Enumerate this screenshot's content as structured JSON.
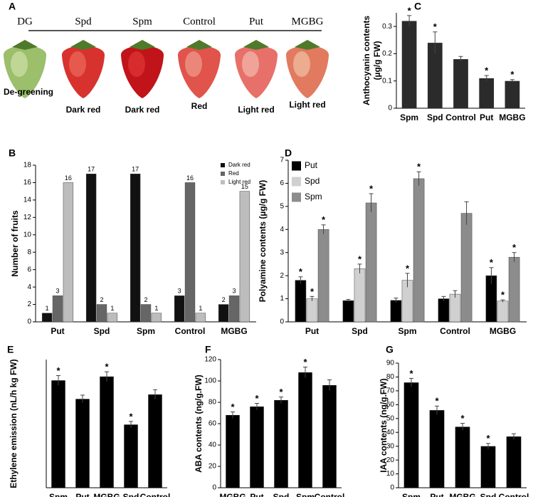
{
  "panel_a": {
    "label": "A",
    "treatments": [
      "DG",
      "Spd",
      "Spm",
      "Control",
      "Put",
      "MGBG"
    ],
    "captions": [
      "De-greening",
      "Dark red",
      "Dark red",
      "Red",
      "Light red",
      "Light red"
    ]
  },
  "chart_data": [
    {
      "type": "bar",
      "panel": "C",
      "ylabel": [
        "Anthocyanin contents",
        "(µg/g FW)"
      ],
      "categories": [
        "Spm",
        "Spd",
        "Control",
        "Put",
        "MGBG"
      ],
      "values": [
        0.32,
        0.24,
        0.18,
        0.11,
        0.1
      ],
      "errors": [
        0.02,
        0.04,
        0.01,
        0.01,
        0.005
      ],
      "markers": [
        "*",
        "*",
        null,
        "*",
        "*"
      ],
      "color": "#2b2b2b",
      "ylim": [
        0,
        0.35
      ],
      "yticks": [
        0,
        0.1,
        0.2,
        0.3
      ]
    },
    {
      "type": "bar",
      "panel": "B",
      "ylabel": "Number of fruits",
      "categories": [
        "Put",
        "Spd",
        "Spm",
        "Control",
        "MGBG"
      ],
      "series": [
        {
          "name": "Dark red",
          "color": "#111111",
          "values": [
            1,
            17,
            17,
            3,
            2
          ]
        },
        {
          "name": "Red",
          "color": "#666666",
          "values": [
            3,
            2,
            2,
            16,
            3
          ]
        },
        {
          "name": "Light red",
          "color": "#bdbdbd",
          "values": [
            16,
            1,
            1,
            1,
            15
          ]
        }
      ],
      "show_values": true,
      "legend": "upper right",
      "ylim": [
        0,
        18
      ],
      "yticks": [
        0,
        2,
        4,
        6,
        8,
        10,
        12,
        14,
        16,
        18
      ]
    },
    {
      "type": "bar",
      "panel": "D",
      "ylabel": "Polyamine contents (µg/g FW)",
      "categories": [
        "Put",
        "Spd",
        "Spm",
        "Control",
        "MGBG"
      ],
      "series": [
        {
          "name": "Put",
          "color": "#000000",
          "values": [
            1.8,
            0.92,
            0.93,
            1.0,
            2.0
          ],
          "errors": [
            0.15,
            0.05,
            0.1,
            0.1,
            0.35
          ],
          "markers": [
            "*",
            null,
            null,
            null,
            "*"
          ]
        },
        {
          "name": "Spd",
          "color": "#d0d0d0",
          "values": [
            1.0,
            2.3,
            1.8,
            1.2,
            0.9
          ],
          "errors": [
            0.1,
            0.2,
            0.3,
            0.15,
            0.05
          ],
          "markers": [
            "*",
            "*",
            "*",
            null,
            "*"
          ]
        },
        {
          "name": "Spm",
          "color": "#8c8c8c",
          "values": [
            4.0,
            5.15,
            6.2,
            4.7,
            2.8
          ],
          "errors": [
            0.2,
            0.4,
            0.3,
            0.5,
            0.2
          ],
          "markers": [
            "*",
            "*",
            "*",
            null,
            "*"
          ]
        }
      ],
      "legend": "upper left",
      "ylim": [
        0,
        7
      ],
      "yticks": [
        0,
        1,
        2,
        3,
        4,
        5,
        6,
        7
      ]
    },
    {
      "type": "bar",
      "panel": "E",
      "ylabel": "Ethylene emission (nL/h kg FW)",
      "categories": [
        "Spm",
        "Put",
        "MGBG",
        "Spd",
        "Control"
      ],
      "values": [
        335,
        277,
        347,
        197,
        291
      ],
      "errors": [
        15,
        12,
        15,
        10,
        15
      ],
      "markers": [
        "*",
        null,
        "*",
        "*",
        null
      ],
      "color": "#000000",
      "ylim": [
        0,
        400
      ]
    },
    {
      "type": "bar",
      "panel": "F",
      "ylabel": "ABA contents (ng/g.FW)",
      "categories": [
        "MGBG",
        "Put",
        "Spd",
        "Spm",
        "Control"
      ],
      "values": [
        68,
        76,
        82,
        108,
        96
      ],
      "errors": [
        3,
        3,
        3,
        5,
        5
      ],
      "markers": [
        "*",
        "*",
        "*",
        "*",
        null
      ],
      "color": "#000000",
      "ylim": [
        0,
        120
      ],
      "yticks": [
        0,
        20,
        40,
        60,
        80,
        100,
        120
      ]
    },
    {
      "type": "bar",
      "panel": "G",
      "ylabel": "IAA contents (ng/g.FW)",
      "categories": [
        "Spm",
        "Put",
        "MGBG",
        "Spd",
        "Control"
      ],
      "values": [
        76,
        56,
        44,
        30,
        37
      ],
      "errors": [
        3,
        3,
        2.5,
        2,
        2
      ],
      "markers": [
        "*",
        "*",
        "*",
        "*",
        null
      ],
      "color": "#000000",
      "ylim": [
        0,
        90
      ],
      "yticks": [
        0,
        10,
        20,
        30,
        40,
        50,
        60,
        70,
        80,
        90
      ]
    }
  ]
}
